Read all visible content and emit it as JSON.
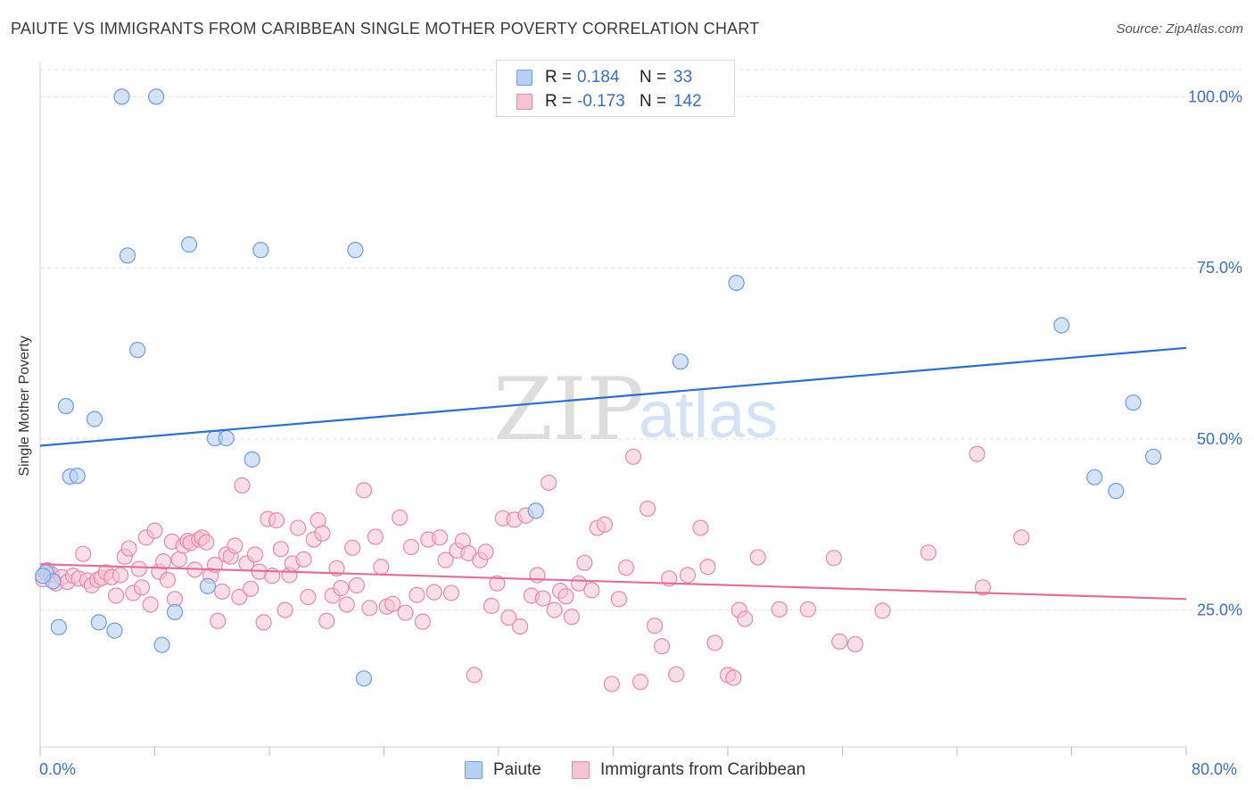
{
  "title": "PAIUTE VS IMMIGRANTS FROM CARIBBEAN SINGLE MOTHER POVERTY CORRELATION CHART",
  "source": "Source: ZipAtlas.com",
  "watermark": {
    "zip": "ZIP",
    "atlas": "atlas"
  },
  "legend_top": {
    "rows": [
      {
        "r_label": "R =",
        "r_value": "0.184",
        "n_label": "N =",
        "n_value": "33"
      },
      {
        "r_label": "R =",
        "r_value": "-0.173",
        "n_label": "N =",
        "n_value": "142"
      }
    ]
  },
  "colors": {
    "paiute_fill": "#b7d0f3",
    "paiute_stroke": "#6f9de0",
    "paiute_line": "#2d6fcc",
    "carib_fill": "#f6c3d3",
    "carib_stroke": "#e88aa9",
    "carib_line": "#e0709a",
    "axis_text": "#3b6fc4",
    "grid": "#e0e0e0"
  },
  "chart_data": {
    "type": "scatter",
    "title": "PAIUTE VS IMMIGRANTS FROM CARIBBEAN SINGLE MOTHER POVERTY CORRELATION CHART",
    "xlabel": "",
    "ylabel": "Single Mother Poverty",
    "xlim": [
      0,
      80
    ],
    "ylim": [
      5,
      105
    ],
    "x_tick_labels": [
      "0.0%",
      "80.0%"
    ],
    "y_ticks": [
      25,
      50,
      75,
      100
    ],
    "y_tick_labels": [
      "25.0%",
      "50.0%",
      "75.0%",
      "100.0%"
    ],
    "grid": true,
    "legend_placement": "top-center",
    "series": [
      {
        "name": "Paiute",
        "r": 0.184,
        "n": 33,
        "trend": [
          [
            0,
            49.0
          ],
          [
            80,
            63.3
          ]
        ],
        "points": [
          [
            0.4,
            30.5
          ],
          [
            0.9,
            29.2
          ],
          [
            1.3,
            22.5
          ],
          [
            1.8,
            54.8
          ],
          [
            2.1,
            44.5
          ],
          [
            2.6,
            44.6
          ],
          [
            3.8,
            52.9
          ],
          [
            4.1,
            23.2
          ],
          [
            5.2,
            22.0
          ],
          [
            5.7,
            100.0
          ],
          [
            6.1,
            76.8
          ],
          [
            6.8,
            63.0
          ],
          [
            8.1,
            100.0
          ],
          [
            8.5,
            19.9
          ],
          [
            9.4,
            24.7
          ],
          [
            10.4,
            78.4
          ],
          [
            11.7,
            28.5
          ],
          [
            12.2,
            50.1
          ],
          [
            13.0,
            50.1
          ],
          [
            14.8,
            47.0
          ],
          [
            15.4,
            77.6
          ],
          [
            22.0,
            77.6
          ],
          [
            22.6,
            15.0
          ],
          [
            34.6,
            39.5
          ],
          [
            44.7,
            61.3
          ],
          [
            47.6,
            100.0
          ],
          [
            48.6,
            72.8
          ],
          [
            71.3,
            66.6
          ],
          [
            73.6,
            44.4
          ],
          [
            75.1,
            42.4
          ],
          [
            76.3,
            55.3
          ],
          [
            77.7,
            47.4
          ],
          [
            0.2,
            30.0
          ]
        ]
      },
      {
        "name": "Immigrants from Caribbean",
        "r": -0.173,
        "n": 142,
        "trend": [
          [
            0,
            31.7
          ],
          [
            80,
            26.6
          ]
        ],
        "points": [
          [
            0.2,
            29.5
          ],
          [
            0.5,
            30.8
          ],
          [
            0.8,
            30.2
          ],
          [
            1.1,
            28.9
          ],
          [
            1.5,
            29.8
          ],
          [
            1.9,
            29.1
          ],
          [
            2.3,
            30.0
          ],
          [
            2.7,
            29.6
          ],
          [
            3.0,
            33.2
          ],
          [
            3.3,
            29.3
          ],
          [
            3.6,
            28.6
          ],
          [
            4.0,
            29.4
          ],
          [
            4.3,
            29.7
          ],
          [
            4.6,
            30.5
          ],
          [
            5.0,
            29.8
          ],
          [
            5.3,
            27.1
          ],
          [
            5.6,
            30.1
          ],
          [
            5.9,
            32.8
          ],
          [
            6.2,
            34.0
          ],
          [
            6.5,
            27.5
          ],
          [
            6.9,
            31.0
          ],
          [
            7.1,
            28.3
          ],
          [
            7.4,
            35.6
          ],
          [
            7.7,
            25.8
          ],
          [
            8.0,
            36.6
          ],
          [
            8.3,
            30.6
          ],
          [
            8.6,
            32.1
          ],
          [
            8.9,
            29.4
          ],
          [
            9.2,
            35.0
          ],
          [
            9.4,
            26.6
          ],
          [
            9.7,
            32.4
          ],
          [
            10.0,
            34.4
          ],
          [
            10.3,
            35.1
          ],
          [
            10.5,
            34.8
          ],
          [
            10.8,
            30.9
          ],
          [
            11.1,
            35.3
          ],
          [
            11.3,
            35.6
          ],
          [
            11.6,
            34.9
          ],
          [
            11.9,
            30.0
          ],
          [
            12.2,
            31.6
          ],
          [
            12.4,
            23.4
          ],
          [
            12.7,
            27.7
          ],
          [
            13.0,
            33.1
          ],
          [
            13.3,
            32.8
          ],
          [
            13.6,
            34.4
          ],
          [
            13.9,
            26.9
          ],
          [
            14.1,
            43.2
          ],
          [
            14.4,
            31.8
          ],
          [
            14.7,
            28.1
          ],
          [
            15.0,
            33.1
          ],
          [
            15.3,
            30.6
          ],
          [
            15.6,
            23.2
          ],
          [
            15.9,
            38.3
          ],
          [
            16.2,
            30.0
          ],
          [
            16.5,
            38.1
          ],
          [
            16.8,
            33.9
          ],
          [
            17.1,
            25.0
          ],
          [
            17.4,
            30.1
          ],
          [
            17.6,
            31.8
          ],
          [
            18.0,
            37.0
          ],
          [
            18.4,
            32.4
          ],
          [
            18.7,
            26.9
          ],
          [
            19.1,
            35.3
          ],
          [
            19.4,
            38.1
          ],
          [
            19.7,
            36.2
          ],
          [
            20.0,
            23.4
          ],
          [
            20.4,
            27.1
          ],
          [
            20.7,
            31.1
          ],
          [
            21.0,
            28.2
          ],
          [
            21.4,
            25.8
          ],
          [
            21.8,
            34.1
          ],
          [
            22.1,
            28.6
          ],
          [
            22.6,
            42.5
          ],
          [
            23.0,
            25.3
          ],
          [
            23.4,
            35.7
          ],
          [
            23.8,
            31.3
          ],
          [
            24.2,
            25.5
          ],
          [
            24.6,
            25.9
          ],
          [
            25.1,
            38.5
          ],
          [
            25.5,
            24.6
          ],
          [
            25.9,
            34.2
          ],
          [
            26.3,
            27.2
          ],
          [
            26.7,
            23.3
          ],
          [
            27.1,
            35.3
          ],
          [
            27.5,
            27.6
          ],
          [
            27.9,
            35.6
          ],
          [
            28.3,
            32.3
          ],
          [
            28.7,
            27.5
          ],
          [
            29.1,
            33.7
          ],
          [
            29.5,
            35.1
          ],
          [
            29.9,
            33.3
          ],
          [
            30.3,
            15.5
          ],
          [
            30.7,
            32.3
          ],
          [
            31.1,
            33.5
          ],
          [
            31.5,
            25.6
          ],
          [
            31.9,
            28.9
          ],
          [
            32.3,
            38.4
          ],
          [
            32.7,
            23.9
          ],
          [
            33.1,
            38.2
          ],
          [
            33.5,
            22.6
          ],
          [
            33.9,
            38.8
          ],
          [
            34.3,
            27.1
          ],
          [
            34.7,
            30.1
          ],
          [
            35.1,
            26.7
          ],
          [
            35.5,
            43.6
          ],
          [
            35.9,
            25.0
          ],
          [
            36.3,
            27.8
          ],
          [
            36.7,
            27.0
          ],
          [
            37.1,
            24.0
          ],
          [
            37.6,
            28.9
          ],
          [
            38.0,
            31.9
          ],
          [
            38.5,
            27.9
          ],
          [
            38.9,
            37.0
          ],
          [
            39.4,
            37.5
          ],
          [
            39.9,
            14.2
          ],
          [
            40.4,
            26.6
          ],
          [
            40.9,
            31.2
          ],
          [
            41.4,
            47.4
          ],
          [
            41.9,
            14.5
          ],
          [
            42.4,
            39.8
          ],
          [
            42.9,
            22.7
          ],
          [
            43.4,
            19.7
          ],
          [
            43.9,
            29.6
          ],
          [
            44.4,
            15.6
          ],
          [
            45.2,
            30.1
          ],
          [
            46.1,
            37.0
          ],
          [
            46.6,
            31.3
          ],
          [
            47.1,
            20.2
          ],
          [
            48.0,
            15.5
          ],
          [
            48.4,
            15.1
          ],
          [
            48.8,
            25.0
          ],
          [
            49.2,
            23.7
          ],
          [
            50.1,
            32.7
          ],
          [
            51.6,
            25.1
          ],
          [
            53.6,
            25.1
          ],
          [
            55.4,
            32.6
          ],
          [
            55.8,
            20.4
          ],
          [
            56.9,
            20.0
          ],
          [
            58.8,
            24.9
          ],
          [
            62.0,
            33.4
          ],
          [
            65.4,
            47.8
          ],
          [
            65.8,
            28.3
          ],
          [
            68.5,
            35.6
          ]
        ]
      }
    ]
  },
  "bottom_legend": [
    {
      "label": "Paiute"
    },
    {
      "label": "Immigrants from Caribbean"
    }
  ]
}
